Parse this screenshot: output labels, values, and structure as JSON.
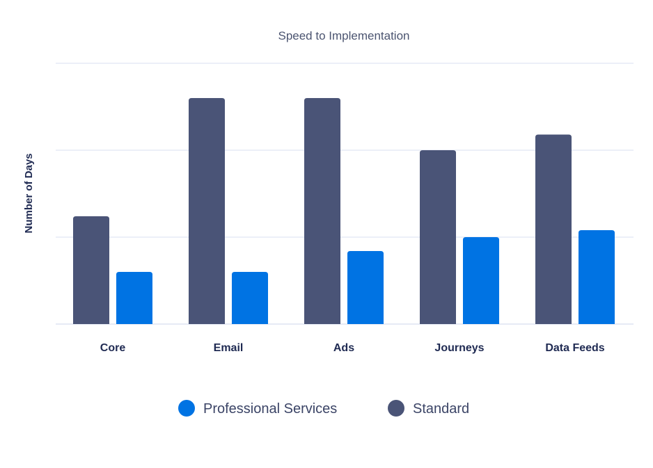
{
  "chart_data": {
    "type": "bar",
    "title": "Speed to Implementation",
    "xlabel": "",
    "ylabel": "Number of Days",
    "categories": [
      "Core",
      "Email",
      "Ads",
      "Journeys",
      "Data Feeds"
    ],
    "series": [
      {
        "name": "Standard",
        "color": "#4a5477",
        "values": [
          31,
          65,
          65,
          50,
          54.5
        ]
      },
      {
        "name": "Professional Services",
        "color": "#0073e3",
        "values": [
          15,
          15,
          21,
          25,
          27
        ]
      }
    ],
    "legend_order": [
      "Professional Services",
      "Standard"
    ],
    "ylim": [
      0,
      75
    ],
    "ytick_step": 25,
    "grid": true,
    "grid_color": "#e6eaf5",
    "legend_position": "bottom-center"
  }
}
